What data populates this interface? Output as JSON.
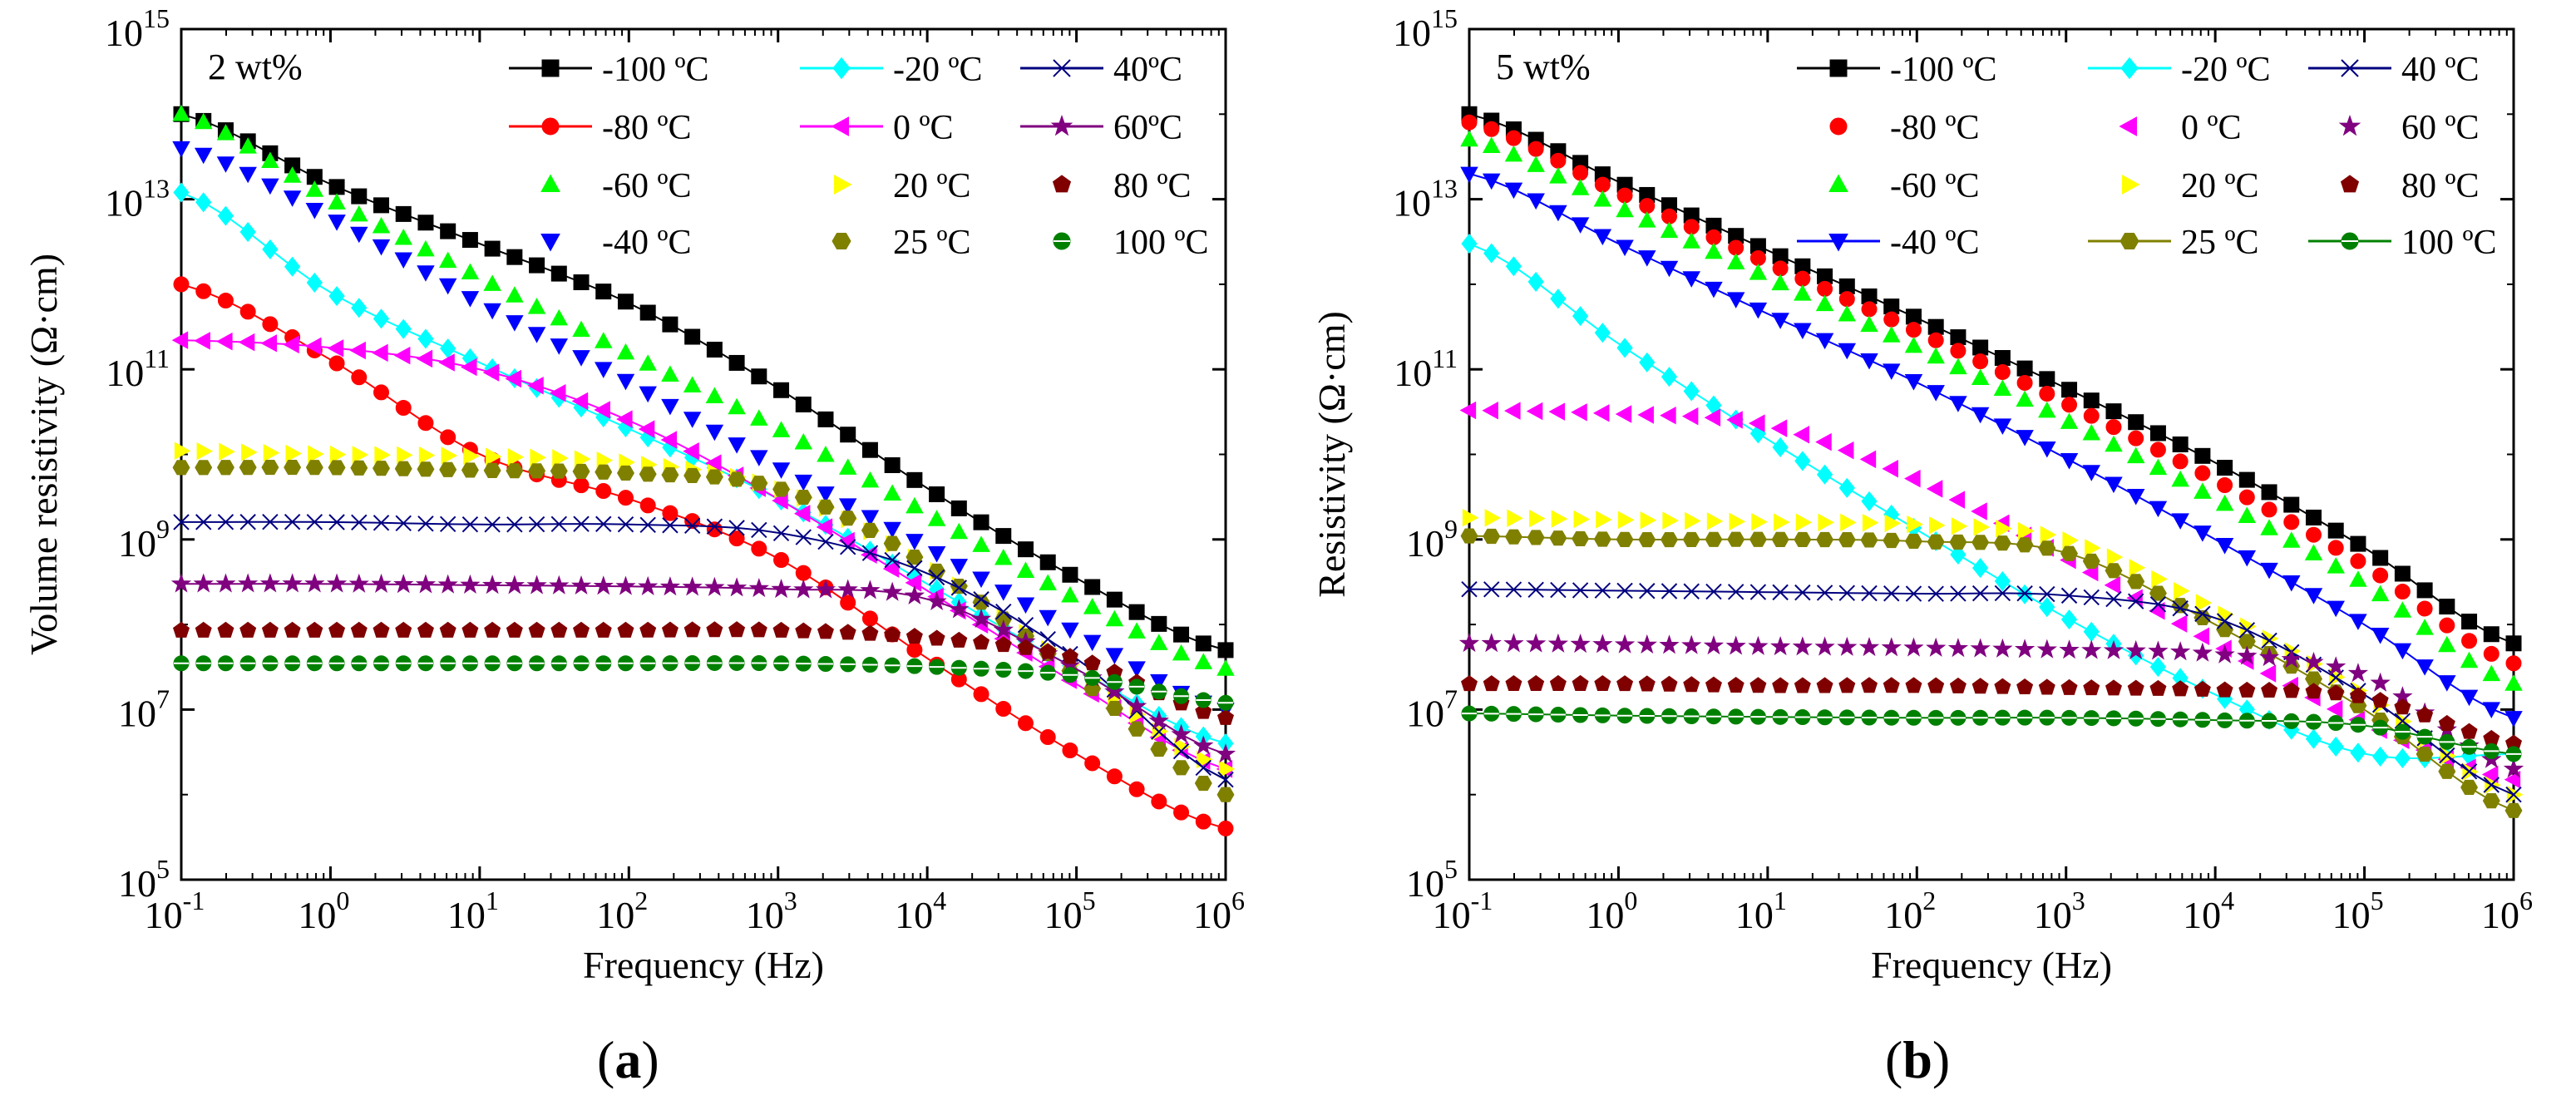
{
  "figure": {
    "label_a": "a",
    "label_b": "b",
    "paren_open": "(",
    "paren_close": ")"
  },
  "chart_data": [
    {
      "type": "line",
      "panel": "a",
      "title": "2 wt%",
      "xlabel": "Frequency (Hz)",
      "ylabel": "Volume resistivity (Ω·cm)",
      "xscale": "log",
      "yscale": "log",
      "xlim": [
        0.1,
        1000000
      ],
      "ylim": [
        100000,
        1000000000000000
      ],
      "xtick_exponents": [
        "-1",
        "0",
        "1",
        "2",
        "3",
        "4",
        "5",
        "6"
      ],
      "ytick_exponents": [
        "5",
        "7",
        "9",
        "11",
        "13",
        "15"
      ],
      "legend_placement": "top-right",
      "series": [
        {
          "name": "-100 ºC",
          "color": "#000000",
          "marker": "square",
          "line": true,
          "points": [
            [
              0.1,
              100000000000000.0
            ],
            [
              1,
              15000000000000.0
            ],
            [
              10,
              3000000000000.0
            ],
            [
              100,
              600000000000.0
            ],
            [
              1000,
              60000000000.0
            ],
            [
              10000,
              4000000000.0
            ],
            [
              100000,
              350000000.0
            ],
            [
              1000000,
              50000000.0
            ]
          ]
        },
        {
          "name": "-80 ºC",
          "color": "#ff0000",
          "marker": "circle",
          "line": true,
          "points": [
            [
              0.1,
              1000000000000.0
            ],
            [
              1,
              130000000000.0
            ],
            [
              10,
              10000000000.0
            ],
            [
              100,
              3000000000.0
            ],
            [
              1000,
              600000000.0
            ],
            [
              10000,
              40000000.0
            ],
            [
              100000,
              3000000.0
            ],
            [
              1000000,
              400000.0
            ]
          ]
        },
        {
          "name": "-60 ºC",
          "color": "#00ff00",
          "marker": "triangle-up",
          "line": false,
          "points": [
            [
              0.1,
              100000000000000.0
            ],
            [
              1,
              10000000000000.0
            ],
            [
              10,
              1200000000000.0
            ],
            [
              100,
              150000000000.0
            ],
            [
              1000,
              20000000000.0
            ],
            [
              10000,
              2000000000.0
            ],
            [
              100000,
              200000000.0
            ],
            [
              1000000,
              30000000.0
            ]
          ]
        },
        {
          "name": "-40 ºC",
          "color": "#0000ff",
          "marker": "triangle-down",
          "line": false,
          "points": [
            [
              0.1,
              40000000000000.0
            ],
            [
              1,
              6000000000000.0
            ],
            [
              10,
              600000000000.0
            ],
            [
              100,
              70000000000.0
            ],
            [
              1000,
              7000000000.0
            ],
            [
              10000,
              800000000.0
            ],
            [
              100000,
              80000000.0
            ],
            [
              1000000,
              10000000.0
            ]
          ]
        },
        {
          "name": "-20 ºC",
          "color": "#00ffff",
          "marker": "diamond",
          "line": true,
          "points": [
            [
              0.1,
              12000000000000.0
            ],
            [
              1,
              800000000000.0
            ],
            [
              10,
              120000000000.0
            ],
            [
              100,
              20000000000.0
            ],
            [
              1000,
              3000000000.0
            ],
            [
              10000,
              300000000.0
            ],
            [
              100000,
              30000000.0
            ],
            [
              1000000,
              4000000.0
            ]
          ]
        },
        {
          "name": "0 ºC",
          "color": "#ff00ff",
          "marker": "triangle-left",
          "line": true,
          "points": [
            [
              0.1,
              220000000000.0
            ],
            [
              1,
              180000000000.0
            ],
            [
              10,
              100000000000.0
            ],
            [
              100,
              25000000000.0
            ],
            [
              1000,
              3000000000.0
            ],
            [
              10000,
              250000000.0
            ],
            [
              100000,
              20000000.0
            ],
            [
              1000000,
              2000000.0
            ]
          ]
        },
        {
          "name": "20 ºC",
          "color": "#ffff00",
          "marker": "triangle-right",
          "line": false,
          "points": [
            [
              0.1,
              11000000000.0
            ],
            [
              1,
              10000000000.0
            ],
            [
              10,
              9500000000.0
            ],
            [
              100,
              8000000000.0
            ],
            [
              1000,
              4000000000.0
            ],
            [
              10000,
              500000000.0
            ],
            [
              100000,
              30000000.0
            ],
            [
              1000000,
              2000000.0
            ]
          ]
        },
        {
          "name": "25 ºC",
          "color": "#808000",
          "marker": "hexagon",
          "line": false,
          "points": [
            [
              0.1,
              7000000000.0
            ],
            [
              1,
              7000000000.0
            ],
            [
              10,
              6500000000.0
            ],
            [
              100,
              6000000000.0
            ],
            [
              1000,
              4000000000.0
            ],
            [
              10000,
              500000000.0
            ],
            [
              100000,
              25000000.0
            ],
            [
              1000000,
              1000000.0
            ]
          ]
        },
        {
          "name": "40ºC",
          "color": "#000080",
          "marker": "cross",
          "line": true,
          "points": [
            [
              0.1,
              1600000000.0
            ],
            [
              1,
              1600000000.0
            ],
            [
              10,
              1500000000.0
            ],
            [
              100,
              1500000000.0
            ],
            [
              1000,
              1200000000.0
            ],
            [
              10000,
              400000000.0
            ],
            [
              100000,
              40000000.0
            ],
            [
              1000000,
              1500000.0
            ]
          ]
        },
        {
          "name": "60ºC",
          "color": "#800080",
          "marker": "star",
          "line": true,
          "points": [
            [
              0.1,
              300000000.0
            ],
            [
              1,
              300000000.0
            ],
            [
              10,
              290000000.0
            ],
            [
              100,
              280000000.0
            ],
            [
              1000,
              260000000.0
            ],
            [
              10000,
              200000000.0
            ],
            [
              100000,
              30000000.0
            ],
            [
              1000000,
              3000000.0
            ]
          ]
        },
        {
          "name": "80 ºC",
          "color": "#800000",
          "marker": "pentagon",
          "line": false,
          "points": [
            [
              0.1,
              85000000.0
            ],
            [
              1,
              85000000.0
            ],
            [
              10,
              85000000.0
            ],
            [
              100,
              85000000.0
            ],
            [
              1000,
              85000000.0
            ],
            [
              10000,
              70000000.0
            ],
            [
              100000,
              40000000.0
            ],
            [
              1000000,
              8000000.0
            ]
          ]
        },
        {
          "name": "100 ºC",
          "color": "#008000",
          "marker": "circle-line",
          "line": false,
          "points": [
            [
              0.1,
              35000000.0
            ],
            [
              1,
              35000000.0
            ],
            [
              10,
              35000000.0
            ],
            [
              100,
              35000000.0
            ],
            [
              1000,
              35000000.0
            ],
            [
              10000,
              32000000.0
            ],
            [
              100000,
              25000000.0
            ],
            [
              1000000,
              12000000.0
            ]
          ]
        }
      ]
    },
    {
      "type": "line",
      "panel": "b",
      "title": "5 wt%",
      "xlabel": "Frequency (Hz)",
      "ylabel": "Resistivity (Ω·cm)",
      "xscale": "log",
      "yscale": "log",
      "xlim": [
        0.1,
        1000000
      ],
      "ylim": [
        100000,
        1000000000000000
      ],
      "xtick_exponents": [
        "-1",
        "0",
        "1",
        "2",
        "3",
        "4",
        "5",
        "6"
      ],
      "ytick_exponents": [
        "5",
        "7",
        "9",
        "11",
        "13",
        "15"
      ],
      "legend_placement": "top-right",
      "series": [
        {
          "name": "-100 ºC",
          "color": "#000000",
          "marker": "square",
          "line": true,
          "points": [
            [
              0.1,
              100000000000000.0
            ],
            [
              1,
              16000000000000.0
            ],
            [
              10,
              2500000000000.0
            ],
            [
              100,
              400000000000.0
            ],
            [
              1000,
              60000000000.0
            ],
            [
              10000,
              8000000000.0
            ],
            [
              100000,
              800000000.0
            ],
            [
              1000000,
              60000000.0
            ]
          ]
        },
        {
          "name": "-80 ºC",
          "color": "#ff0000",
          "marker": "circle",
          "line": false,
          "points": [
            [
              0.1,
              80000000000000.0
            ],
            [
              1,
              12000000000000.0
            ],
            [
              10,
              1800000000000.0
            ],
            [
              100,
              280000000000.0
            ],
            [
              1000,
              40000000000.0
            ],
            [
              10000,
              5000000000.0
            ],
            [
              100000,
              500000000.0
            ],
            [
              1000000,
              35000000.0
            ]
          ]
        },
        {
          "name": "-60 ºC",
          "color": "#00ff00",
          "marker": "triangle-up",
          "line": false,
          "points": [
            [
              0.1,
              50000000000000.0
            ],
            [
              1,
              8000000000000.0
            ],
            [
              10,
              1200000000000.0
            ],
            [
              100,
              180000000000.0
            ],
            [
              1000,
              25000000000.0
            ],
            [
              10000,
              3000000000.0
            ],
            [
              100000,
              300000000.0
            ],
            [
              1000000,
              20000000.0
            ]
          ]
        },
        {
          "name": "-40 ºC",
          "color": "#0000ff",
          "marker": "triangle-down",
          "line": true,
          "points": [
            [
              0.1,
              20000000000000.0
            ],
            [
              1,
              3000000000000.0
            ],
            [
              10,
              450000000000.0
            ],
            [
              100,
              70000000000.0
            ],
            [
              1000,
              9000000000.0
            ],
            [
              10000,
              1000000000.0
            ],
            [
              100000,
              100000000.0
            ],
            [
              1000000,
              8000000.0
            ]
          ]
        },
        {
          "name": "-20 ºC",
          "color": "#00ffff",
          "marker": "diamond",
          "line": true,
          "points": [
            [
              0.1,
              3000000000000.0
            ],
            [
              1,
              200000000000.0
            ],
            [
              10,
              15000000000.0
            ],
            [
              100,
              1300000000.0
            ],
            [
              1000,
              120000000.0
            ],
            [
              10000,
              15000000.0
            ],
            [
              100000,
              3000000.0
            ],
            [
              1000000,
              3000000.0
            ]
          ]
        },
        {
          "name": "0 ºC",
          "color": "#ff00ff",
          "marker": "triangle-left",
          "line": false,
          "points": [
            [
              0.1,
              33000000000.0
            ],
            [
              1,
              30000000000.0
            ],
            [
              10,
              22000000000.0
            ],
            [
              100,
              5000000000.0
            ],
            [
              1000,
              600000000.0
            ],
            [
              10000,
              60000000.0
            ],
            [
              100000,
              7000000.0
            ],
            [
              1000000,
              1500000.0
            ]
          ]
        },
        {
          "name": "20 ºC",
          "color": "#ffff00",
          "marker": "triangle-right",
          "line": false,
          "points": [
            [
              0.1,
              1800000000.0
            ],
            [
              1,
              1700000000.0
            ],
            [
              10,
              1600000000.0
            ],
            [
              100,
              1500000000.0
            ],
            [
              1000,
              1000000000.0
            ],
            [
              10000,
              150000000.0
            ],
            [
              100000,
              15000000.0
            ],
            [
              1000000,
              1000000.0
            ]
          ]
        },
        {
          "name": "25 ºC",
          "color": "#808000",
          "marker": "hexagon",
          "line": true,
          "points": [
            [
              0.1,
              1100000000.0
            ],
            [
              1,
              1000000000.0
            ],
            [
              10,
              1000000000.0
            ],
            [
              100,
              950000000.0
            ],
            [
              1000,
              700000000.0
            ],
            [
              10000,
              100000000.0
            ],
            [
              100000,
              10000000.0
            ],
            [
              1000000,
              650000.0
            ]
          ]
        },
        {
          "name": "40 ºC",
          "color": "#000080",
          "marker": "cross",
          "line": true,
          "points": [
            [
              0.1,
              260000000.0
            ],
            [
              1,
              250000000.0
            ],
            [
              10,
              240000000.0
            ],
            [
              100,
              230000000.0
            ],
            [
              1000,
              220000000.0
            ],
            [
              10000,
              120000000.0
            ],
            [
              100000,
              15000000.0
            ],
            [
              1000000,
              1000000.0
            ]
          ]
        },
        {
          "name": "60 ºC",
          "color": "#800080",
          "marker": "star",
          "line": false,
          "points": [
            [
              0.1,
              60000000.0
            ],
            [
              1,
              58000000.0
            ],
            [
              10,
              55000000.0
            ],
            [
              100,
              53000000.0
            ],
            [
              1000,
              50000000.0
            ],
            [
              10000,
              45000000.0
            ],
            [
              100000,
              25000000.0
            ],
            [
              1000000,
              2000000.0
            ]
          ]
        },
        {
          "name": "80 ºC",
          "color": "#800000",
          "marker": "pentagon",
          "line": false,
          "points": [
            [
              0.1,
              20000000.0
            ],
            [
              1,
              20000000.0
            ],
            [
              10,
              19000000.0
            ],
            [
              100,
              19000000.0
            ],
            [
              1000,
              18000000.0
            ],
            [
              10000,
              17000000.0
            ],
            [
              100000,
              14000000.0
            ],
            [
              1000000,
              4000000.0
            ]
          ]
        },
        {
          "name": "100 ºC",
          "color": "#008000",
          "marker": "circle-line",
          "line": true,
          "points": [
            [
              0.1,
              9000000.0
            ],
            [
              1,
              8500000.0
            ],
            [
              10,
              8200000.0
            ],
            [
              100,
              8000000.0
            ],
            [
              1000,
              8000000.0
            ],
            [
              10000,
              7500000.0
            ],
            [
              100000,
              6500000.0
            ],
            [
              1000000,
              3000000.0
            ]
          ]
        }
      ]
    }
  ]
}
